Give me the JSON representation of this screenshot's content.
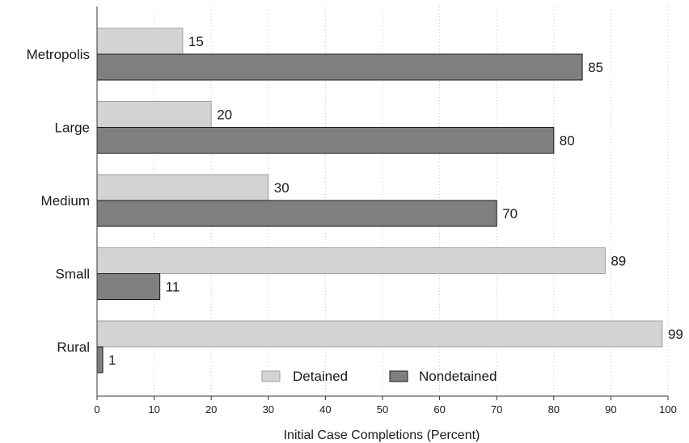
{
  "chart_data": {
    "type": "bar",
    "orientation": "horizontal",
    "categories": [
      "Metropolis",
      "Large",
      "Medium",
      "Small",
      "Rural"
    ],
    "series": [
      {
        "name": "Detained",
        "values": [
          15,
          20,
          30,
          89,
          99
        ],
        "color": "#d3d3d3"
      },
      {
        "name": "Nondetained",
        "values": [
          85,
          80,
          70,
          11,
          1
        ],
        "color": "#7f7f7f"
      }
    ],
    "xlabel": "Initial Case Completions (Percent)",
    "ylabel": "",
    "xlim": [
      0,
      100
    ],
    "xticks": [
      0,
      10,
      20,
      30,
      40,
      50,
      60,
      70,
      80,
      90,
      100
    ],
    "grid": "vertical-dotted",
    "legend_position": "bottom-center"
  }
}
